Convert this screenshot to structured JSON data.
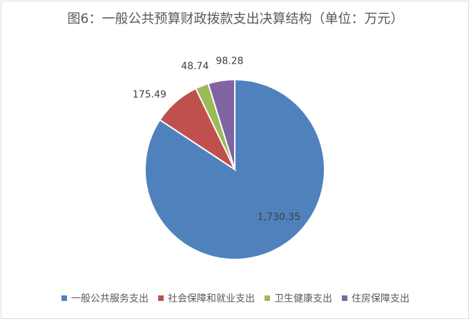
{
  "chart_data": {
    "type": "pie",
    "title": "图6：一般公共预算财政拨款支出决算结构（单位：万元）",
    "slices": [
      {
        "name": "一般公共服务支出",
        "value": 1730.35,
        "label": "1,730.35",
        "color": "#4f81bd"
      },
      {
        "name": "社会保障和就业支出",
        "value": 175.49,
        "label": "175.49",
        "color": "#c0504d"
      },
      {
        "name": "卫生健康支出",
        "value": 48.74,
        "label": "48.74",
        "color": "#9bbb59"
      },
      {
        "name": "住房保障支出",
        "value": 98.28,
        "label": "98.28",
        "color": "#8064a2"
      }
    ],
    "legend_position": "bottom"
  }
}
